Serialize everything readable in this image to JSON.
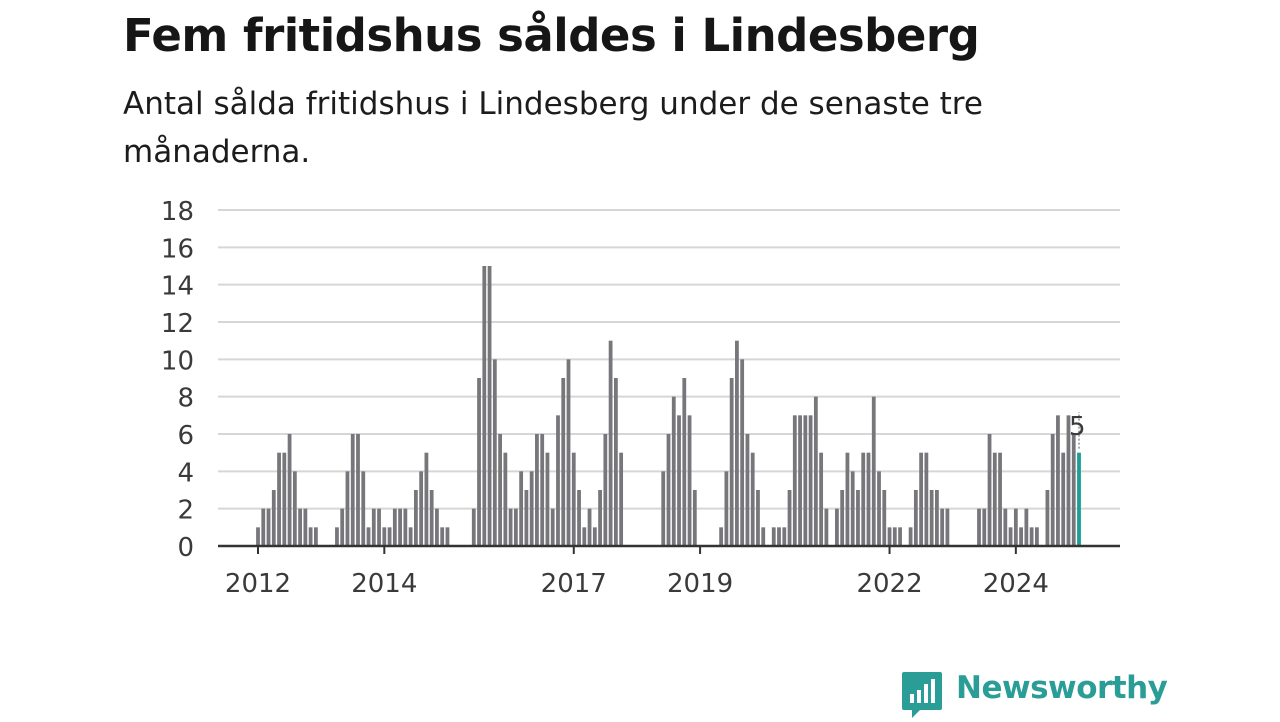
{
  "header": {
    "title": "Fem fritidshus såldes i Lindesberg",
    "subtitle": "Antal sålda fritidshus i Lindesberg under de senaste tre månaderna."
  },
  "brand": {
    "name": "Newsworthy",
    "color": "#2a9d96"
  },
  "chart_data": {
    "type": "bar",
    "title": "",
    "xlabel": "",
    "ylabel": "",
    "ylim": [
      0,
      18
    ],
    "yticks": [
      0,
      2,
      4,
      6,
      8,
      10,
      12,
      14,
      16,
      18
    ],
    "grid": true,
    "bar_color": "#77767a",
    "highlight_color": "#1a9e96",
    "x_tick_labels": [
      "2012",
      "2014",
      "2017",
      "2019",
      "2022",
      "2024"
    ],
    "annotation": {
      "text": "5",
      "target": "last bar"
    },
    "series": [
      {
        "values": [
          1,
          2,
          2,
          3,
          5,
          5,
          6,
          4,
          2,
          2,
          1,
          1,
          null,
          null,
          null,
          1,
          2,
          4,
          6,
          6,
          4,
          1,
          2,
          2,
          1,
          1,
          2,
          2,
          2,
          1,
          3,
          4,
          5,
          3,
          2,
          1,
          1,
          null,
          null,
          null,
          null,
          2,
          9,
          15,
          15,
          10,
          6,
          5,
          2,
          2,
          4,
          3,
          4,
          6,
          6,
          5,
          2,
          7,
          9,
          10,
          5,
          3,
          1,
          2,
          1,
          3,
          6,
          11,
          9,
          5,
          null,
          null,
          null,
          null,
          null,
          null,
          null,
          4,
          6,
          8,
          7,
          9,
          7,
          3,
          null,
          null,
          null,
          null,
          1,
          4,
          9,
          11,
          10,
          6,
          5,
          3,
          1,
          null,
          1,
          1,
          1,
          3,
          7,
          7,
          7,
          7,
          8,
          5,
          2,
          null,
          2,
          3,
          5,
          4,
          3,
          5,
          5,
          8,
          4,
          3,
          1,
          1,
          1,
          null,
          1,
          3,
          5,
          5,
          3,
          3,
          2,
          2,
          null,
          null,
          null,
          null,
          null,
          2,
          2,
          6,
          5,
          5,
          2,
          1,
          2,
          1,
          2,
          1,
          1,
          null,
          3,
          6,
          7,
          5,
          7,
          6,
          5
        ]
      }
    ]
  }
}
